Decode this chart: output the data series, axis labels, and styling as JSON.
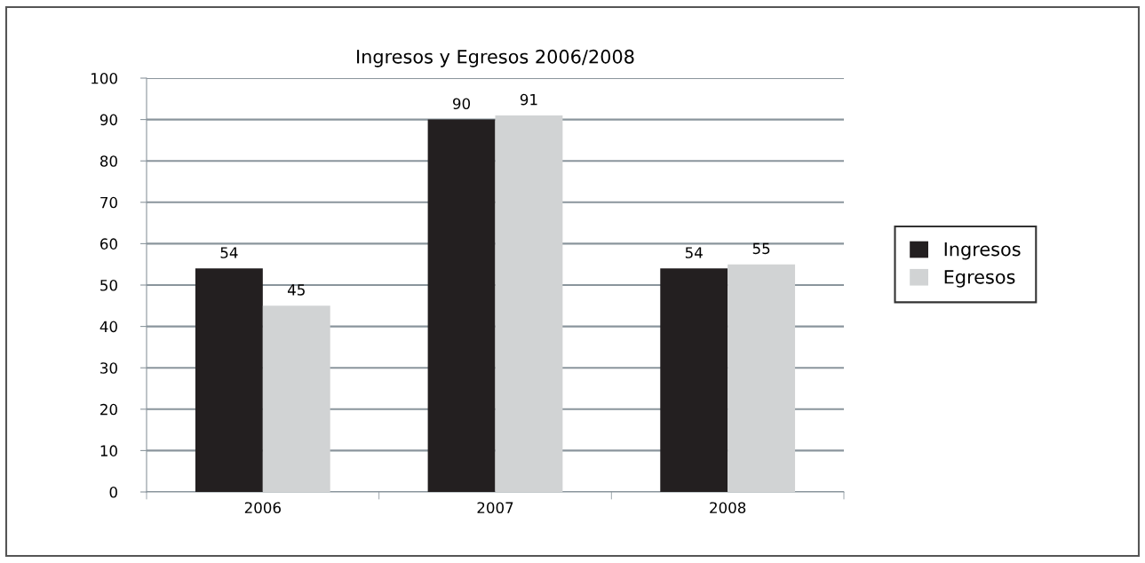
{
  "chart_data": {
    "type": "bar",
    "title": "Ingresos y Egresos 2006/2008",
    "categories": [
      "2006",
      "2007",
      "2008"
    ],
    "series": [
      {
        "name": "Ingresos",
        "color": "#231f20",
        "values": [
          54,
          90,
          54
        ]
      },
      {
        "name": "Egresos",
        "color": "#d1d3d4",
        "values": [
          45,
          91,
          55
        ]
      }
    ],
    "ylim": [
      0,
      100
    ],
    "yticks": [
      0,
      10,
      20,
      30,
      40,
      50,
      60,
      70,
      80,
      90,
      100
    ],
    "grid": "y",
    "legend": "right",
    "data_labels": true
  }
}
